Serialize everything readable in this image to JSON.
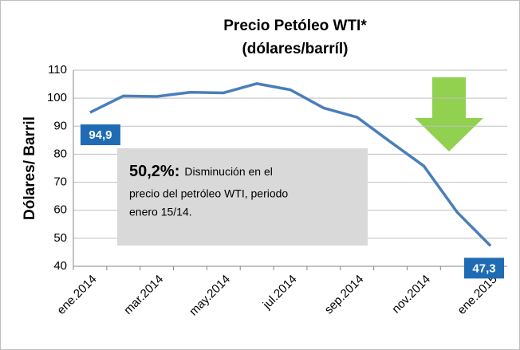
{
  "chart_data": {
    "type": "line",
    "title": [
      "Precio Petóleo WTI*",
      "(dólares/barríl)"
    ],
    "y_label": "Dólares/ Barril",
    "categories": [
      "ene.2014",
      null,
      "mar.2014",
      null,
      "may.2014",
      null,
      "jul.2014",
      null,
      "sep.2014",
      null,
      "nov.2014",
      null,
      "ene.2015"
    ],
    "series": [
      {
        "name": "WTI",
        "color": "#4a7ebb",
        "values": [
          94.9,
          100.8,
          100.6,
          102.1,
          101.9,
          105.2,
          103.0,
          96.5,
          93.2,
          84.4,
          75.8,
          59.3,
          47.3
        ],
        "value_labels": [
          "94,9",
          null,
          null,
          null,
          null,
          null,
          null,
          null,
          null,
          null,
          null,
          null,
          "47,3"
        ]
      }
    ],
    "ylim": [
      40,
      110
    ],
    "yticks": [
      40,
      50,
      60,
      70,
      80,
      90,
      100,
      110
    ],
    "grid": true,
    "annotation": {
      "highlight": "50,2%:",
      "lines": [
        "Disminución  en el",
        "precio del petróleo WTI, periodo",
        "enero 15/14."
      ]
    }
  }
}
